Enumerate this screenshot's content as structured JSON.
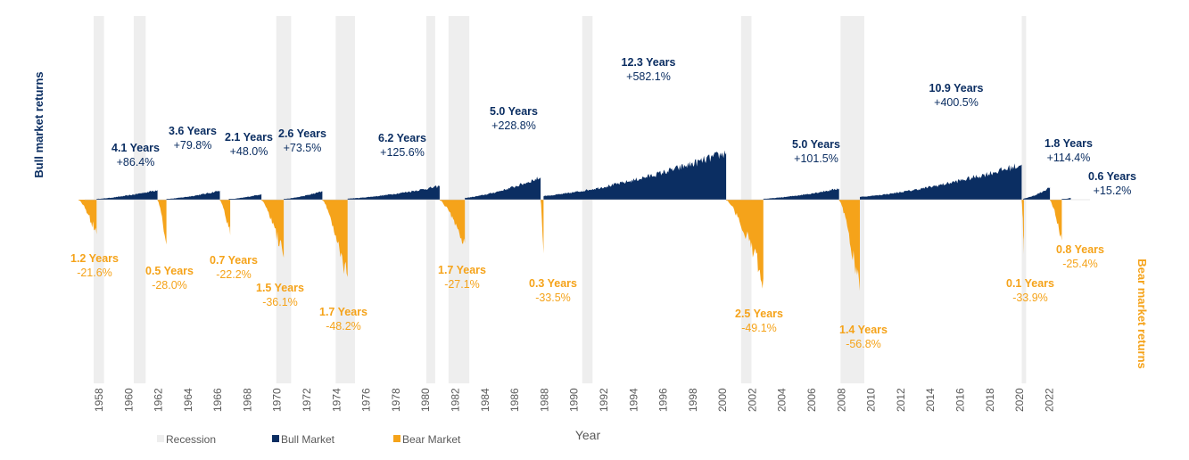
{
  "chart_data": {
    "type": "area",
    "xlabel": "Year",
    "left_axis_label": "Bull market returns",
    "right_axis_label": "Bear market returns",
    "x_ticks": [
      1958,
      1960,
      1962,
      1964,
      1966,
      1968,
      1970,
      1972,
      1974,
      1976,
      1978,
      1980,
      1982,
      1984,
      1986,
      1988,
      1990,
      1992,
      1994,
      1996,
      1998,
      2000,
      2002,
      2004,
      2006,
      2008,
      2010,
      2012,
      2014,
      2016,
      2018,
      2020,
      2022
    ],
    "xlim": [
      1957.3,
      2024.5
    ],
    "legend": [
      {
        "key": "recession",
        "label": "Recession",
        "color": "#eeeeee"
      },
      {
        "key": "bull",
        "label": "Bull Market",
        "color": "#0b2e62"
      },
      {
        "key": "bear",
        "label": "Bear Market",
        "color": "#f5a31a"
      }
    ],
    "recessions": [
      {
        "start": 1957.6,
        "end": 1958.3
      },
      {
        "start": 1960.3,
        "end": 1961.1
      },
      {
        "start": 1969.9,
        "end": 1970.9
      },
      {
        "start": 1973.9,
        "end": 1975.2
      },
      {
        "start": 1980.0,
        "end": 1980.6
      },
      {
        "start": 1981.5,
        "end": 1982.9
      },
      {
        "start": 1990.5,
        "end": 1991.2
      },
      {
        "start": 2001.2,
        "end": 2001.9
      },
      {
        "start": 2007.9,
        "end": 2009.5
      },
      {
        "start": 2020.1,
        "end": 2020.4
      }
    ],
    "bull_markets": [
      {
        "start": 1957.8,
        "end": 1961.9,
        "duration": "4.1 Years",
        "return": "+86.4%",
        "value": 86.4
      },
      {
        "start": 1962.5,
        "end": 1966.1,
        "duration": "3.6 Years",
        "return": "+79.8%",
        "value": 79.8
      },
      {
        "start": 1966.7,
        "end": 1968.9,
        "duration": "2.1 Years",
        "return": "+48.0%",
        "value": 48.0
      },
      {
        "start": 1970.4,
        "end": 1973.0,
        "duration": "2.6 Years",
        "return": "+73.5%",
        "value": 73.5
      },
      {
        "start": 1974.7,
        "end": 1980.9,
        "duration": "6.2 Years",
        "return": "+125.6%",
        "value": 125.6
      },
      {
        "start": 1982.6,
        "end": 1987.7,
        "duration": "5.0 Years",
        "return": "+228.8%",
        "value": 228.8
      },
      {
        "start": 1987.9,
        "end": 2000.2,
        "duration": "12.3 Years",
        "return": "+582.1%",
        "value": 582.1
      },
      {
        "start": 2002.7,
        "end": 2007.8,
        "duration": "5.0 Years",
        "return": "+101.5%",
        "value": 101.5
      },
      {
        "start": 2009.2,
        "end": 2020.1,
        "duration": "10.9 Years",
        "return": "+400.5%",
        "value": 400.5
      },
      {
        "start": 2020.2,
        "end": 2022.0,
        "duration": "1.8 Years",
        "return": "+114.4%",
        "value": 114.4
      },
      {
        "start": 2022.8,
        "end": 2023.4,
        "duration": "0.6 Years",
        "return": "+15.2%",
        "value": 15.2
      }
    ],
    "bear_markets": [
      {
        "start": 1956.6,
        "end": 1957.8,
        "duration": "1.2 Years",
        "return": "-21.6%",
        "value": -21.6
      },
      {
        "start": 1961.9,
        "end": 1962.5,
        "duration": "0.5 Years",
        "return": "-28.0%",
        "value": -28.0
      },
      {
        "start": 1966.1,
        "end": 1966.8,
        "duration": "0.7 Years",
        "return": "-22.2%",
        "value": -22.2
      },
      {
        "start": 1968.9,
        "end": 1970.4,
        "duration": "1.5 Years",
        "return": "-36.1%",
        "value": -36.1
      },
      {
        "start": 1973.0,
        "end": 1974.7,
        "duration": "1.7 Years",
        "return": "-48.2%",
        "value": -48.2
      },
      {
        "start": 1980.9,
        "end": 1982.6,
        "duration": "1.7 Years",
        "return": "-27.1%",
        "value": -27.1
      },
      {
        "start": 1987.7,
        "end": 1987.9,
        "duration": "0.3 Years",
        "return": "-33.5%",
        "value": -33.5
      },
      {
        "start": 2000.2,
        "end": 2002.7,
        "duration": "2.5 Years",
        "return": "-49.1%",
        "value": -49.1
      },
      {
        "start": 2007.8,
        "end": 2009.2,
        "duration": "1.4 Years",
        "return": "-56.8%",
        "value": -56.8
      },
      {
        "start": 2020.1,
        "end": 2020.2,
        "duration": "0.1 Years",
        "return": "-33.9%",
        "value": -33.9
      },
      {
        "start": 2022.0,
        "end": 2022.8,
        "duration": "0.8 Years",
        "return": "-25.4%",
        "value": -25.4
      }
    ]
  }
}
